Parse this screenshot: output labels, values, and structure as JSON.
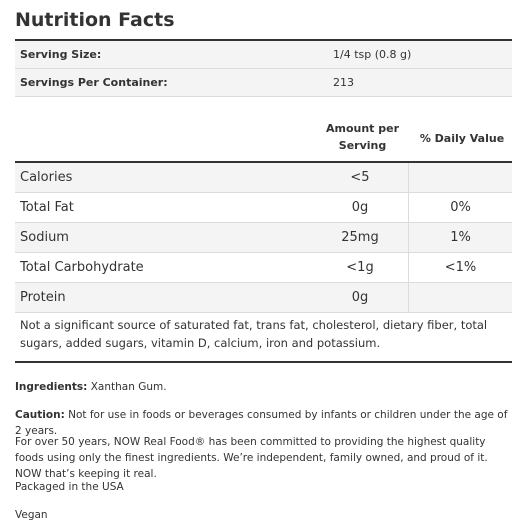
{
  "title": "Nutrition Facts",
  "serving": {
    "size_label": "Serving Size:",
    "size_value": "1/4 tsp (0.8 g)",
    "per_container_label": "Servings Per Container:",
    "per_container_value": "213"
  },
  "headers": {
    "amount_line1": "Amount per",
    "amount_line2": "Serving",
    "daily_value": "% Daily Value"
  },
  "rows": [
    {
      "name": "Calories",
      "amount": "<5",
      "dv": ""
    },
    {
      "name": "Total Fat",
      "amount": "0g",
      "dv": "0%"
    },
    {
      "name": "Sodium",
      "amount": "25mg",
      "dv": "1%"
    },
    {
      "name": "Total Carbohydrate",
      "amount": "<1g",
      "dv": "<1%"
    },
    {
      "name": "Protein",
      "amount": "0g",
      "dv": ""
    }
  ],
  "footnote": "Not a significant source of saturated fat, trans fat, cholesterol, dietary fiber, total sugars, added sugars, vitamin D, calcium, iron and potassium.",
  "ingredients": {
    "label": "Ingredients:",
    "text": " Xanthan Gum."
  },
  "caution": {
    "label": "Caution:",
    "text": " Not for use in foods or beverages consumed by infants or children under the age of 2 years."
  },
  "about": "For over 50 years, NOW Real Food® has been committed to providing the highest quality foods using only the finest ingredients. We’re independent, family owned, and proud of it. NOW that’s keeping it real.",
  "packaged": "Packaged in the USA",
  "vegan": "Vegan"
}
